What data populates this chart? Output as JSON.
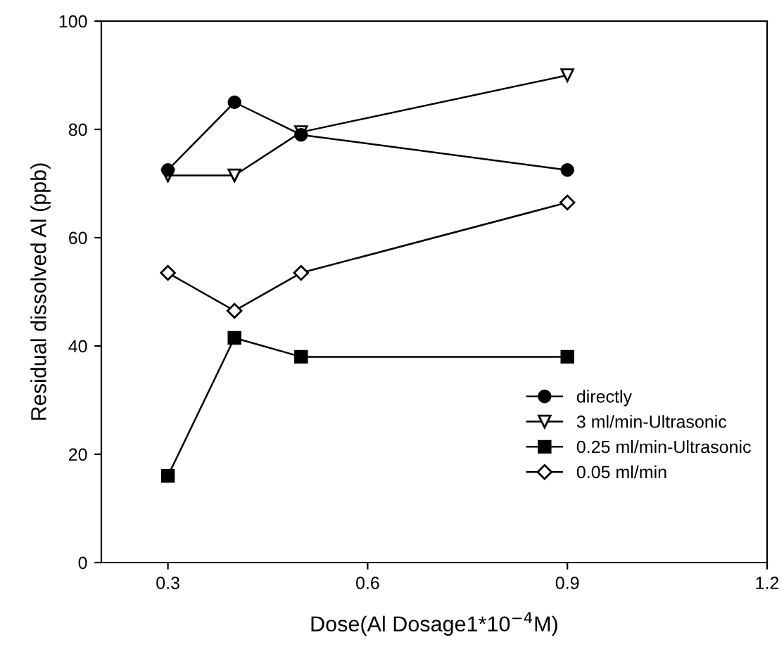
{
  "chart_data": {
    "type": "line",
    "xlabel": "Dose(Al Dosage1*10$^{−4}$M)",
    "ylabel": "Residual dissolved Al (ppb)",
    "x": [
      0.3,
      0.4,
      0.5,
      0.9
    ],
    "series": [
      {
        "name": "directly",
        "color": "#000000",
        "marker": "circle",
        "values": [
          72.5,
          85,
          79,
          72.5
        ]
      },
      {
        "name": "3 ml/min-Ultrasonic",
        "color": "#000000",
        "marker": "triangle_down",
        "values": [
          71.5,
          71.5,
          79.5,
          90
        ]
      },
      {
        "name": "0.25 ml/min-Ultrasonic",
        "color": "#000000",
        "marker": "square",
        "values": [
          16,
          41.5,
          38,
          38
        ]
      },
      {
        "name": "0.05 ml/min",
        "color": "#000000",
        "marker": "diamond_open",
        "values": [
          53.5,
          46.5,
          53.5,
          66.5
        ]
      }
    ],
    "xlim": [
      0.2,
      1.2
    ],
    "xticks": [
      0.3,
      0.6,
      0.9,
      1.2
    ],
    "ylim": [
      0,
      100
    ],
    "yticks": [
      0,
      20,
      40,
      60,
      80,
      100
    ],
    "grid": false,
    "legend": "bottom right",
    "line_style": "solid"
  }
}
